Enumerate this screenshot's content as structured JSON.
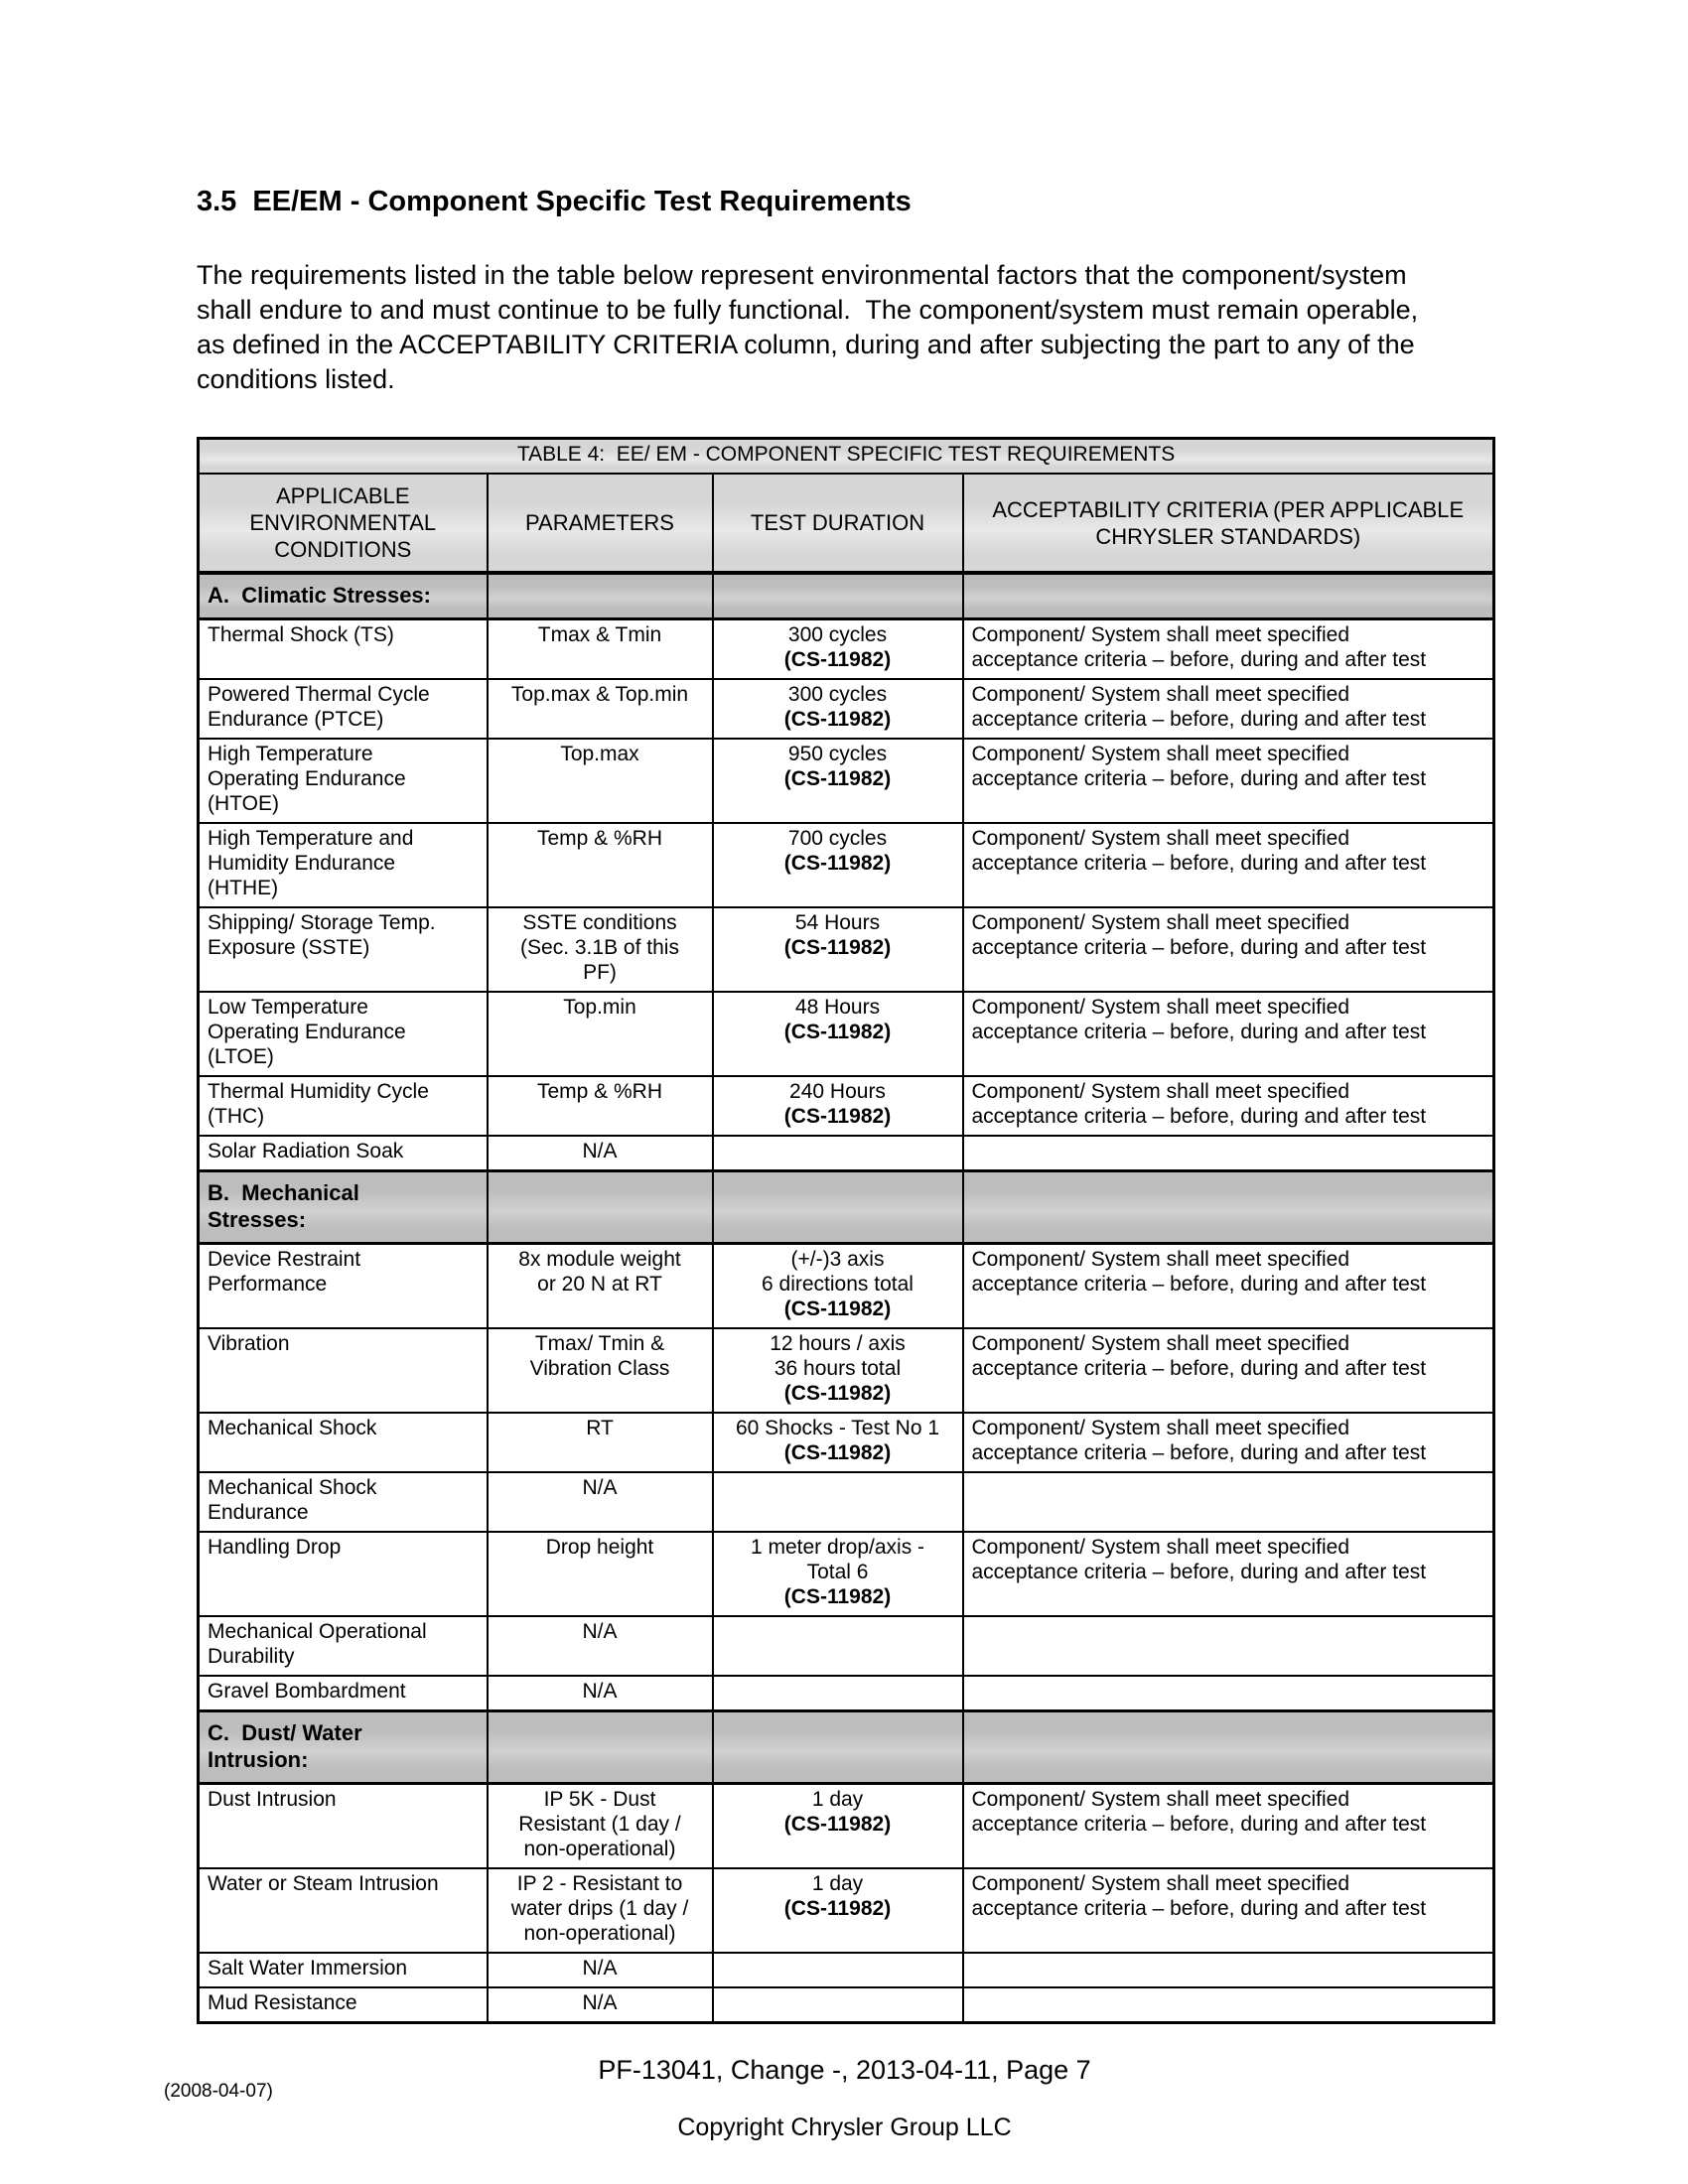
{
  "colors": {
    "text": "#000000",
    "table_border": "#000000",
    "header_bg": "#d6d6d6",
    "section_bg": "#bdbdbd"
  },
  "page": {
    "heading": "3.5  EE/EM - Component Specific Test Requirements",
    "intro": "The requirements listed in the table below represent environmental factors that the component/system\nshall endure to and must continue to be fully functional.  The component/system must remain operable,\nas defined in the ACCEPTABILITY CRITERIA column, during and after subjecting the part to any of the\nconditions listed.",
    "footer_page_line": "PF-13041, Change -, 2013-04-11, Page 7",
    "footer_copyright": "Copyright Chrysler Group LLC",
    "footer_note": "(2008-04-07)"
  },
  "table": {
    "title": "TABLE 4:  EE/ EM - COMPONENT SPECIFIC TEST REQUIREMENTS",
    "columns": [
      [
        "APPLICABLE",
        "ENVIRONMENTAL",
        "CONDITIONS"
      ],
      [
        "PARAMETERS"
      ],
      [
        "TEST DURATION"
      ],
      [
        "ACCEPTABILITY CRITERIA (PER APPLICABLE",
        "CHRYSLER STANDARDS)"
      ]
    ],
    "rows": [
      {
        "section": [
          "A.  Climatic Stresses:"
        ]
      },
      {
        "condition": [
          "Thermal Shock (TS)"
        ],
        "parameters": [
          "Tmax & Tmin"
        ],
        "duration": [
          {
            "text": "300 cycles",
            "bold": false
          },
          {
            "text": "(CS-11982)",
            "bold": true
          }
        ],
        "criteria": [
          "Component/ System shall meet specified",
          "acceptance criteria – before, during and after test"
        ]
      },
      {
        "condition": [
          "Powered Thermal Cycle",
          "Endurance (PTCE)"
        ],
        "parameters": [
          "Top.max & Top.min"
        ],
        "duration": [
          {
            "text": "300 cycles",
            "bold": false
          },
          {
            "text": "(CS-11982)",
            "bold": true
          }
        ],
        "criteria": [
          "Component/ System shall meet specified",
          "acceptance criteria – before, during and after test"
        ]
      },
      {
        "condition": [
          "High Temperature",
          "Operating Endurance",
          "(HTOE)"
        ],
        "parameters": [
          "Top.max"
        ],
        "duration": [
          {
            "text": "950 cycles",
            "bold": false
          },
          {
            "text": "(CS-11982)",
            "bold": true
          }
        ],
        "criteria": [
          "Component/ System shall meet specified",
          "acceptance criteria – before, during and after test"
        ]
      },
      {
        "condition": [
          "High Temperature and",
          "Humidity Endurance",
          "(HTHE)"
        ],
        "parameters": [
          "Temp & %RH"
        ],
        "duration": [
          {
            "text": "700 cycles",
            "bold": false
          },
          {
            "text": "(CS-11982)",
            "bold": true
          }
        ],
        "criteria": [
          "Component/ System shall meet specified",
          "acceptance criteria – before, during and after test"
        ]
      },
      {
        "condition": [
          "Shipping/ Storage Temp.",
          "Exposure (SSTE)"
        ],
        "parameters": [
          "SSTE conditions",
          "(Sec. 3.1B of this",
          "PF)"
        ],
        "duration": [
          {
            "text": "54 Hours",
            "bold": false
          },
          {
            "text": "(CS-11982)",
            "bold": true
          }
        ],
        "criteria": [
          "Component/ System shall meet specified",
          "acceptance criteria – before, during and after test"
        ]
      },
      {
        "condition": [
          "Low Temperature",
          "Operating Endurance",
          "(LTOE)"
        ],
        "parameters": [
          "Top.min"
        ],
        "duration": [
          {
            "text": "48 Hours",
            "bold": false
          },
          {
            "text": "(CS-11982)",
            "bold": true
          }
        ],
        "criteria": [
          "Component/ System shall meet specified",
          "acceptance criteria – before, during and after test"
        ]
      },
      {
        "condition": [
          "Thermal Humidity Cycle",
          "(THC)"
        ],
        "parameters": [
          "Temp & %RH"
        ],
        "duration": [
          {
            "text": "240 Hours",
            "bold": false
          },
          {
            "text": "(CS-11982)",
            "bold": true
          }
        ],
        "criteria": [
          "Component/ System shall meet specified",
          "acceptance criteria – before, during and after test"
        ]
      },
      {
        "condition": [
          "Solar Radiation Soak"
        ],
        "parameters": [
          "N/A"
        ],
        "duration": [],
        "criteria": []
      },
      {
        "section": [
          "B.  Mechanical",
          "Stresses:"
        ]
      },
      {
        "condition": [
          "Device Restraint",
          "Performance"
        ],
        "parameters": [
          "8x module weight",
          "or 20 N at RT"
        ],
        "duration": [
          {
            "text": "(+/-)3 axis",
            "bold": false
          },
          {
            "text": "6 directions total",
            "bold": false
          },
          {
            "text": "(CS-11982)",
            "bold": true
          }
        ],
        "criteria": [
          "Component/ System shall meet specified",
          "acceptance criteria – before, during and after test"
        ]
      },
      {
        "condition": [
          "Vibration"
        ],
        "parameters": [
          "Tmax/ Tmin &",
          "Vibration Class"
        ],
        "duration": [
          {
            "text": "12 hours / axis",
            "bold": false
          },
          {
            "text": "36 hours total",
            "bold": false
          },
          {
            "text": "(CS-11982)",
            "bold": true
          }
        ],
        "criteria": [
          "Component/ System shall meet specified",
          "acceptance criteria – before, during and after test"
        ]
      },
      {
        "condition": [
          "Mechanical Shock"
        ],
        "parameters": [
          "RT"
        ],
        "duration": [
          {
            "text": "60 Shocks - Test No 1",
            "bold": false
          },
          {
            "text": "(CS-11982)",
            "bold": true
          }
        ],
        "criteria": [
          "Component/ System shall meet specified",
          "acceptance criteria – before, during and after test"
        ]
      },
      {
        "condition": [
          "Mechanical Shock",
          "Endurance"
        ],
        "parameters": [
          "N/A"
        ],
        "duration": [],
        "criteria": []
      },
      {
        "condition": [
          "Handling Drop"
        ],
        "parameters": [
          "Drop height"
        ],
        "duration": [
          {
            "text": "1 meter drop/axis -",
            "bold": false
          },
          {
            "text": "Total 6",
            "bold": false
          },
          {
            "text": "(CS-11982)",
            "bold": true
          }
        ],
        "criteria": [
          "Component/ System shall meet specified",
          "acceptance criteria – before, during and after test"
        ]
      },
      {
        "condition": [
          "Mechanical Operational",
          "Durability"
        ],
        "parameters": [
          "N/A"
        ],
        "duration": [],
        "criteria": []
      },
      {
        "condition": [
          "Gravel Bombardment"
        ],
        "parameters": [
          "N/A"
        ],
        "duration": [],
        "criteria": []
      },
      {
        "section": [
          "C.  Dust/ Water",
          "Intrusion:"
        ]
      },
      {
        "condition": [
          "Dust Intrusion"
        ],
        "parameters": [
          "IP 5K - Dust",
          "Resistant (1 day /",
          "non-operational)"
        ],
        "duration": [
          {
            "text": "1 day",
            "bold": false
          },
          {
            "text": "(CS-11982)",
            "bold": true
          }
        ],
        "criteria": [
          "Component/ System shall meet specified",
          "acceptance criteria – before, during and after test"
        ]
      },
      {
        "condition": [
          "Water or Steam Intrusion"
        ],
        "parameters": [
          "IP 2 - Resistant to",
          "water drips (1 day /",
          "non-operational)"
        ],
        "duration": [
          {
            "text": "1 day",
            "bold": false
          },
          {
            "text": "(CS-11982)",
            "bold": true
          }
        ],
        "criteria": [
          "Component/ System shall meet specified",
          "acceptance criteria – before, during and after test"
        ]
      },
      {
        "condition": [
          "Salt Water Immersion"
        ],
        "parameters": [
          "N/A"
        ],
        "duration": [],
        "criteria": []
      },
      {
        "condition": [
          "Mud Resistance"
        ],
        "parameters": [
          "N/A"
        ],
        "duration": [],
        "criteria": []
      }
    ]
  }
}
